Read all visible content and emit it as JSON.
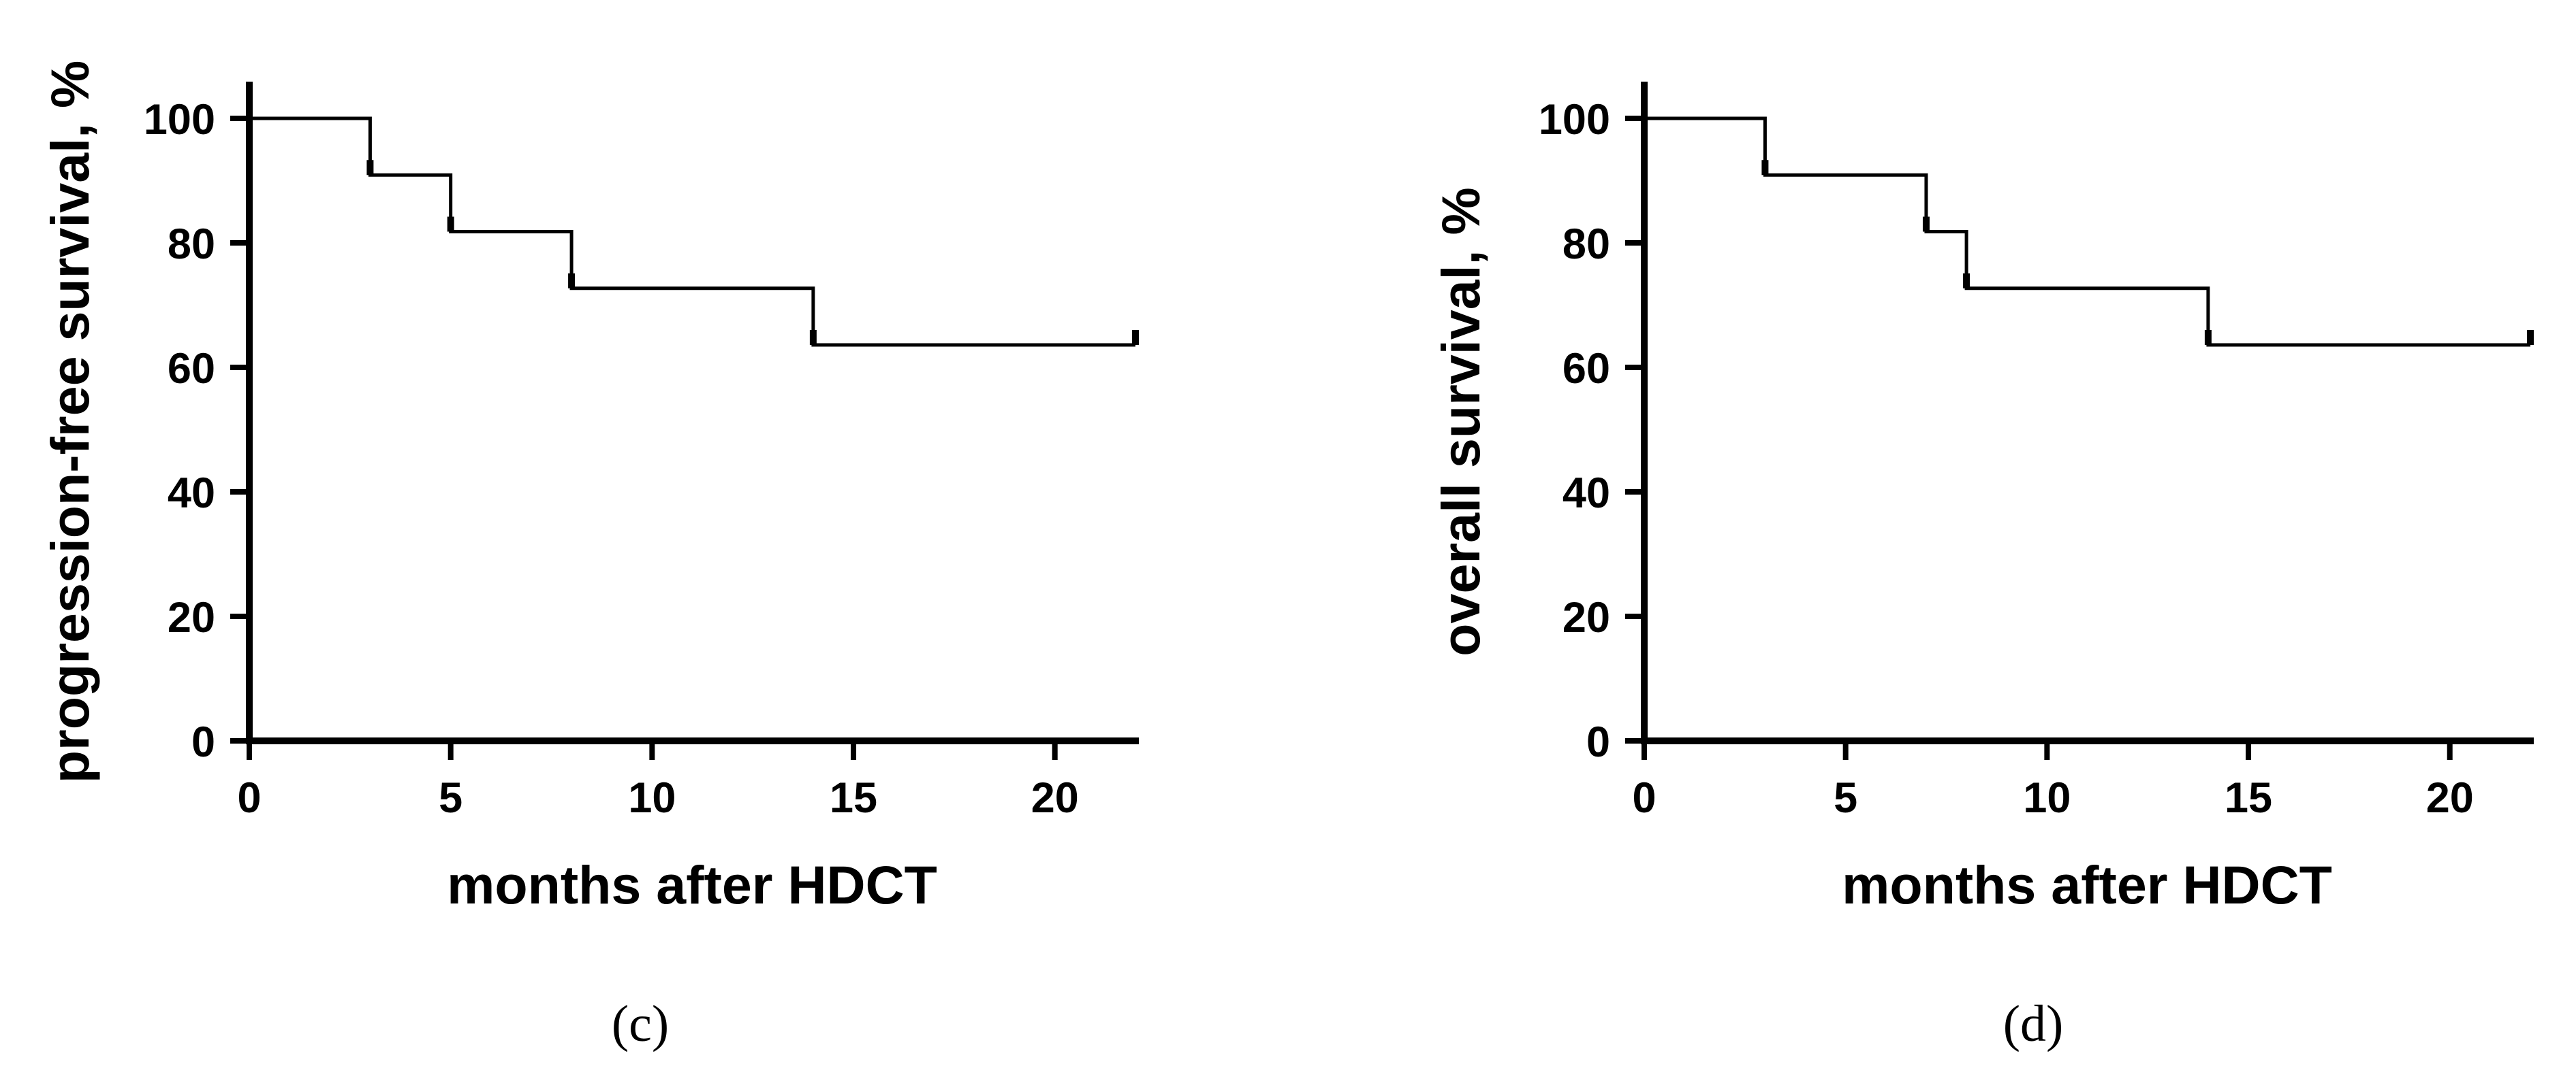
{
  "chart_data": [
    {
      "type": "line",
      "step": true,
      "panel_label": "(c)",
      "xlabel": "months after HDCT",
      "ylabel": "progression-free survival, %",
      "xlim": [
        0,
        22
      ],
      "ylim": [
        0,
        100
      ],
      "xticks": [
        0,
        5,
        10,
        15,
        20
      ],
      "yticks": [
        0,
        20,
        40,
        60,
        80,
        100
      ],
      "grid": false,
      "series": [
        {
          "x": [
            0,
            3,
            5,
            8,
            14,
            22
          ],
          "y": [
            100,
            90.9,
            81.8,
            72.7,
            63.6,
            63.6
          ],
          "censored_x": [
            3,
            5,
            8,
            14,
            22
          ]
        }
      ]
    },
    {
      "type": "line",
      "step": true,
      "panel_label": "(d)",
      "xlabel": "months after HDCT",
      "ylabel": "overall survival, %",
      "xlim": [
        0,
        22
      ],
      "ylim": [
        0,
        100
      ],
      "xticks": [
        0,
        5,
        10,
        15,
        20
      ],
      "yticks": [
        0,
        20,
        40,
        60,
        80,
        100
      ],
      "grid": false,
      "series": [
        {
          "x": [
            0,
            3,
            7,
            8,
            14,
            22
          ],
          "y": [
            100,
            90.9,
            81.8,
            72.7,
            63.6,
            63.6
          ],
          "censored_x": [
            3,
            7,
            8,
            14,
            22
          ]
        }
      ]
    }
  ]
}
